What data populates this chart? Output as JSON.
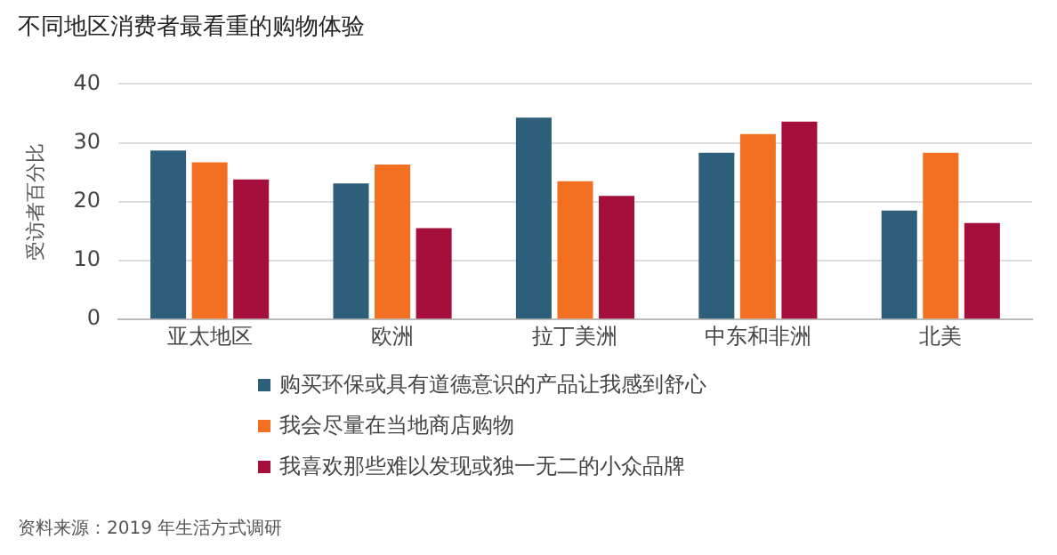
{
  "chart_data": {
    "type": "bar",
    "title": "不同地区消费者最看重的购物体验",
    "ylabel": "受访者百分比",
    "categories": [
      "亚太地区",
      "欧洲",
      "拉丁美洲",
      "中东和非洲",
      "北美"
    ],
    "series": [
      {
        "name": "购买环保或具有道德意识的产品让我感到舒心",
        "color": "#2e5f7a",
        "values": [
          28.7,
          23.1,
          34.3,
          28.3,
          18.5
        ]
      },
      {
        "name": "我会尽量在当地商店购物",
        "color": "#f36f21",
        "values": [
          26.7,
          26.3,
          23.5,
          31.5,
          28.3
        ]
      },
      {
        "name": "我喜欢那些难以发现或独一无二的小众品牌",
        "color": "#a50f3b",
        "values": [
          23.8,
          15.5,
          21.0,
          33.6,
          16.4
        ]
      }
    ],
    "ylim": [
      0,
      40
    ],
    "yticks": [
      0,
      10,
      20,
      30,
      40
    ],
    "grid": "y",
    "legend": "bottom",
    "annotations": [
      "资料来源：2019 年生活方式调研"
    ]
  }
}
